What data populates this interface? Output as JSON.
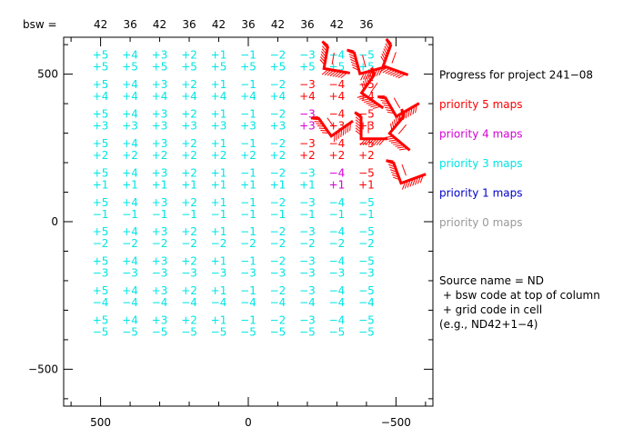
{
  "chart_data": {
    "type": "scatter",
    "title": "",
    "xlabel": "",
    "ylabel": "",
    "x_reversed": true,
    "xlim": [
      625,
      -625
    ],
    "ylim": [
      -625,
      625
    ],
    "x_ticks": [
      {
        "value": 500,
        "label": "500"
      },
      {
        "value": 0,
        "label": "0"
      },
      {
        "value": -500,
        "label": "−500"
      }
    ],
    "y_ticks": [
      {
        "value": 500,
        "label": "500"
      },
      {
        "value": 0,
        "label": "0"
      },
      {
        "value": -500,
        "label": "−500"
      }
    ],
    "column_header_label": "bsw =",
    "columns": [
      {
        "x": 500,
        "bsw": "42",
        "code": "+5"
      },
      {
        "x": 400,
        "bsw": "36",
        "code": "+4"
      },
      {
        "x": 300,
        "bsw": "42",
        "code": "+3"
      },
      {
        "x": 200,
        "bsw": "36",
        "code": "+2"
      },
      {
        "x": 100,
        "bsw": "42",
        "code": "+1"
      },
      {
        "x": 0,
        "bsw": "36",
        "code": "−1"
      },
      {
        "x": -100,
        "bsw": "42",
        "code": "−2"
      },
      {
        "x": -200,
        "bsw": "36",
        "code": "−3"
      },
      {
        "x": -300,
        "bsw": "42",
        "code": "−4"
      },
      {
        "x": -400,
        "bsw": "36",
        "code": "−5"
      }
    ],
    "rows": [
      {
        "y": 550,
        "code": "+5"
      },
      {
        "y": 450,
        "code": "+4"
      },
      {
        "y": 350,
        "code": "+3"
      },
      {
        "y": 250,
        "code": "+2"
      },
      {
        "y": 150,
        "code": "+1"
      },
      {
        "y": 50,
        "code": "−1"
      },
      {
        "y": -50,
        "code": "−2"
      },
      {
        "y": -150,
        "code": "−3"
      },
      {
        "y": -250,
        "code": "−4"
      },
      {
        "y": -350,
        "code": "−5"
      }
    ],
    "cell_priorities": {
      "c7r1": 5,
      "c8r1": 5,
      "c9r1": 5,
      "c7r2": 4,
      "c8r2": 5,
      "c9r2": 5,
      "c7r3": 5,
      "c8r3": 5,
      "c9r3": 5,
      "c8r4": 4,
      "c9r4": 5
    },
    "default_priority": 3,
    "priority_colors": {
      "5": "#ff0000",
      "4": "#d400d4",
      "3": "#00e5e5",
      "1": "#0000cc",
      "0": "#999999"
    },
    "map_glyphs": [
      {
        "x": -305,
        "y": 548,
        "angle": 10
      },
      {
        "x": -410,
        "y": 548,
        "angle": -15
      },
      {
        "x": -510,
        "y": 548,
        "angle": 20
      },
      {
        "x": -440,
        "y": 442,
        "angle": 35
      },
      {
        "x": -520,
        "y": 410,
        "angle": -30
      },
      {
        "x": -295,
        "y": 345,
        "angle": -35
      },
      {
        "x": -425,
        "y": 318,
        "angle": 0
      },
      {
        "x": -535,
        "y": 300,
        "angle": 40
      },
      {
        "x": -545,
        "y": 180,
        "angle": -20
      }
    ],
    "legend": [
      {
        "label": "Progress for project 241−08",
        "priority": null,
        "color": "#000000"
      },
      {
        "label": "priority 5 maps",
        "priority": 5,
        "color": "#ff0000"
      },
      {
        "label": "priority 4 maps",
        "priority": 4,
        "color": "#d400d4"
      },
      {
        "label": "priority 3 maps",
        "priority": 3,
        "color": "#00e5e5"
      },
      {
        "label": "priority 1 maps",
        "priority": 1,
        "color": "#0000cc"
      },
      {
        "label": "priority 0 maps",
        "priority": 0,
        "color": "#999999"
      }
    ],
    "notes": [
      "Source name = ND",
      " + bsw code at top of column",
      " + grid code in cell",
      "(e.g., ND42+1−4)"
    ]
  }
}
